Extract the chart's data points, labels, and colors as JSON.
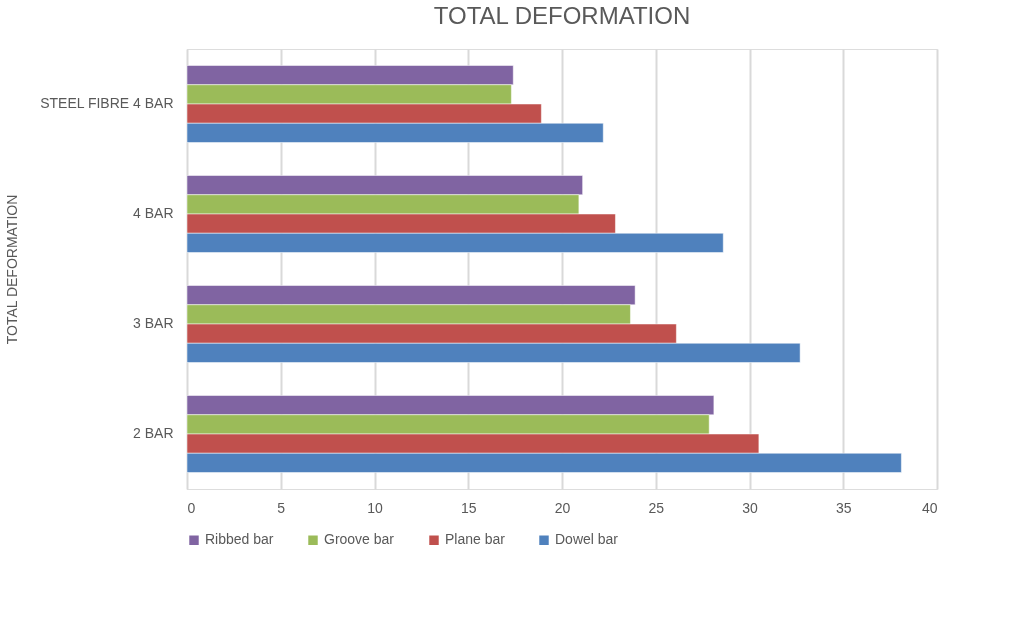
{
  "chart_data": {
    "type": "bar",
    "orientation": "horizontal",
    "title": "TOTAL DEFORMATION",
    "ylabel": "TOTAL DEFORMATION",
    "categories": [
      "STEEL FIBRE 4 BAR",
      "4 BAR",
      "3 BAR",
      "2 BAR"
    ],
    "series": [
      {
        "name": "Ribbed bar",
        "color": "#8064a2",
        "values": [
          17.4,
          21.1,
          23.9,
          28.1
        ]
      },
      {
        "name": "Groove bar",
        "color": "#9bbb59",
        "values": [
          17.3,
          20.9,
          23.65,
          27.85
        ]
      },
      {
        "name": "Plane bar",
        "color": "#c0504d",
        "values": [
          18.9,
          22.85,
          26.1,
          30.5
        ]
      },
      {
        "name": "Dowel bar",
        "color": "#4f81bd",
        "values": [
          22.2,
          28.6,
          32.7,
          38.1
        ]
      }
    ],
    "xlim": [
      0,
      40
    ],
    "xticks": [
      0,
      5,
      10,
      15,
      20,
      25,
      30,
      35,
      40
    ],
    "grid": "x",
    "legend": "bottom"
  }
}
